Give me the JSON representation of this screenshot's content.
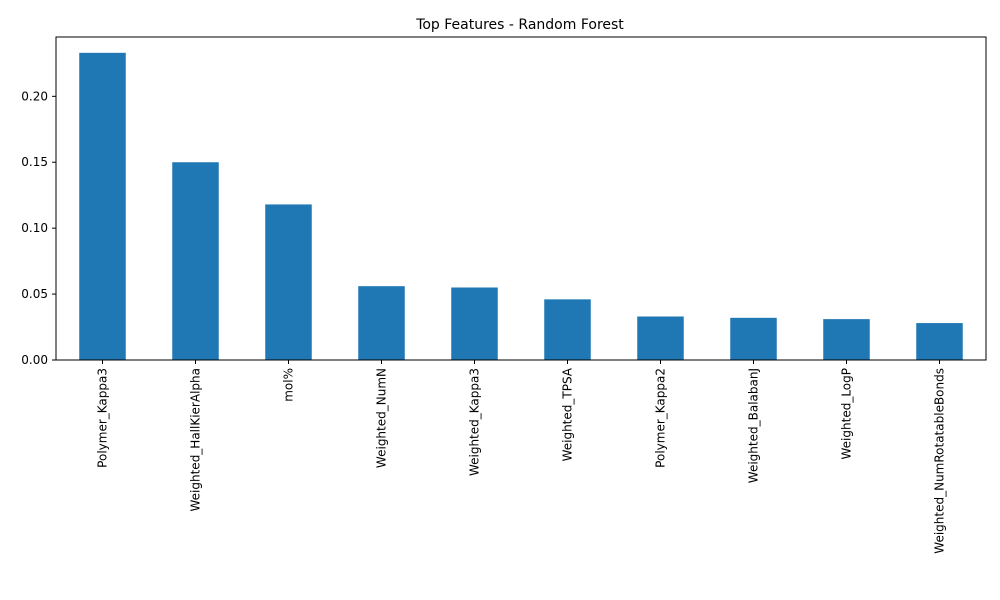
{
  "chart_data": {
    "type": "bar",
    "title": "Top Features - Random Forest",
    "xlabel": "",
    "ylabel": "",
    "categories": [
      "Polymer_Kappa3",
      "Weighted_HallKierAlpha",
      "mol%",
      "Weighted_NumN",
      "Weighted_Kappa3",
      "Weighted_TPSA",
      "Polymer_Kappa2",
      "Weighted_BalabanJ",
      "Weighted_LogP",
      "Weighted_NumRotatableBonds"
    ],
    "values": [
      0.233,
      0.15,
      0.118,
      0.056,
      0.055,
      0.046,
      0.033,
      0.032,
      0.031,
      0.028
    ],
    "ylim": [
      0,
      0.245
    ],
    "yticks": [
      0.0,
      0.05,
      0.1,
      0.15,
      0.2
    ],
    "ytick_labels": [
      "0.00",
      "0.05",
      "0.10",
      "0.15",
      "0.20"
    ],
    "grid": false,
    "legend": "none",
    "bar_color": "#1f77b4"
  }
}
